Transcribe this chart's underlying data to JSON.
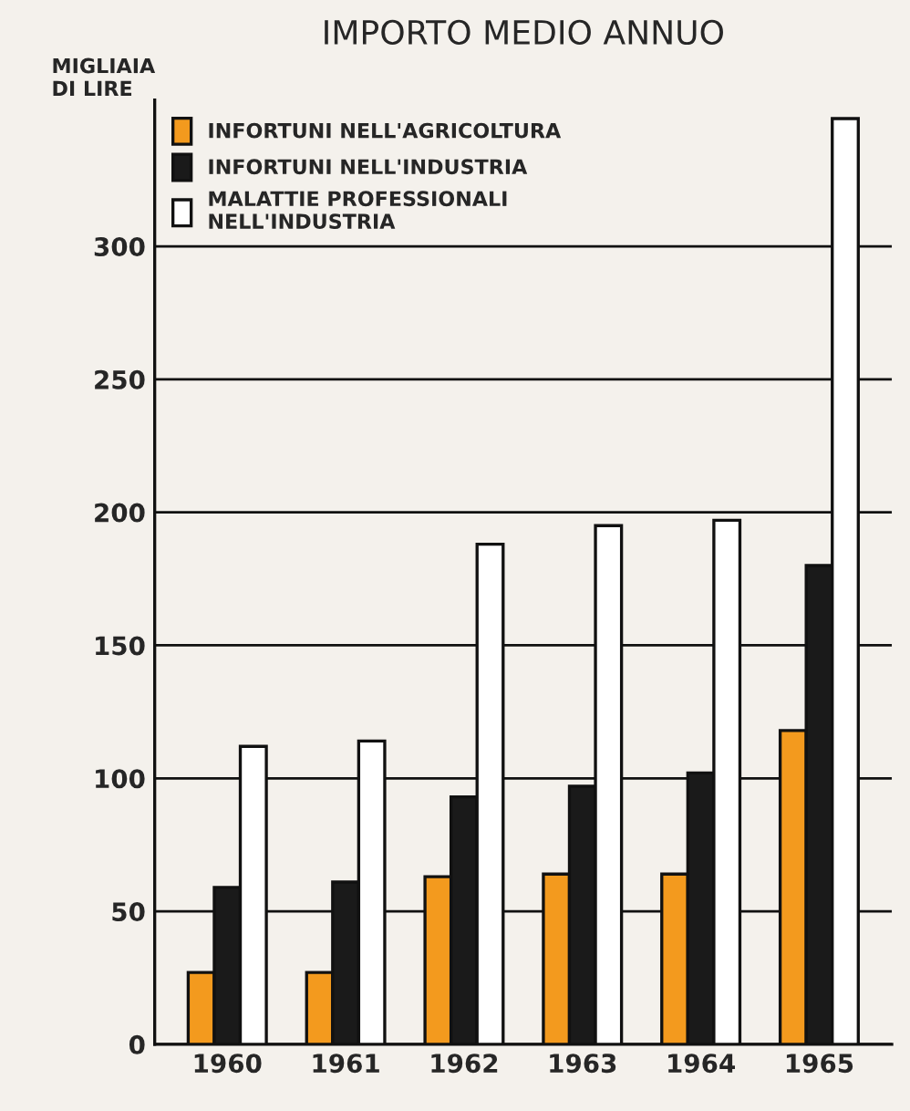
{
  "chart_data": {
    "type": "bar",
    "title": "IMPORTO MEDIO ANNUO",
    "ylabel": "MIGLIAIA\nDI LIRE",
    "categories": [
      "1960",
      "1961",
      "1962",
      "1963",
      "1964",
      "1965"
    ],
    "series": [
      {
        "name": "INFORTUNI NELL'AGRICOLTURA",
        "color": "#f39a1e",
        "values": [
          27,
          27,
          63,
          64,
          64,
          118
        ]
      },
      {
        "name": "INFORTUNI NELL'INDUSTRIA",
        "color": "#1a1a1a",
        "values": [
          59,
          61,
          93,
          97,
          102,
          180
        ]
      },
      {
        "name": "MALATTIE PROFESSIONALI\nNELL'INDUSTRIA",
        "color": "#ffffff",
        "values": [
          112,
          114,
          188,
          195,
          197,
          348
        ]
      }
    ],
    "ylim": [
      0,
      355
    ],
    "yticks": [
      0,
      50,
      100,
      150,
      200,
      250,
      300
    ],
    "grid": "y",
    "legend": "top left"
  }
}
